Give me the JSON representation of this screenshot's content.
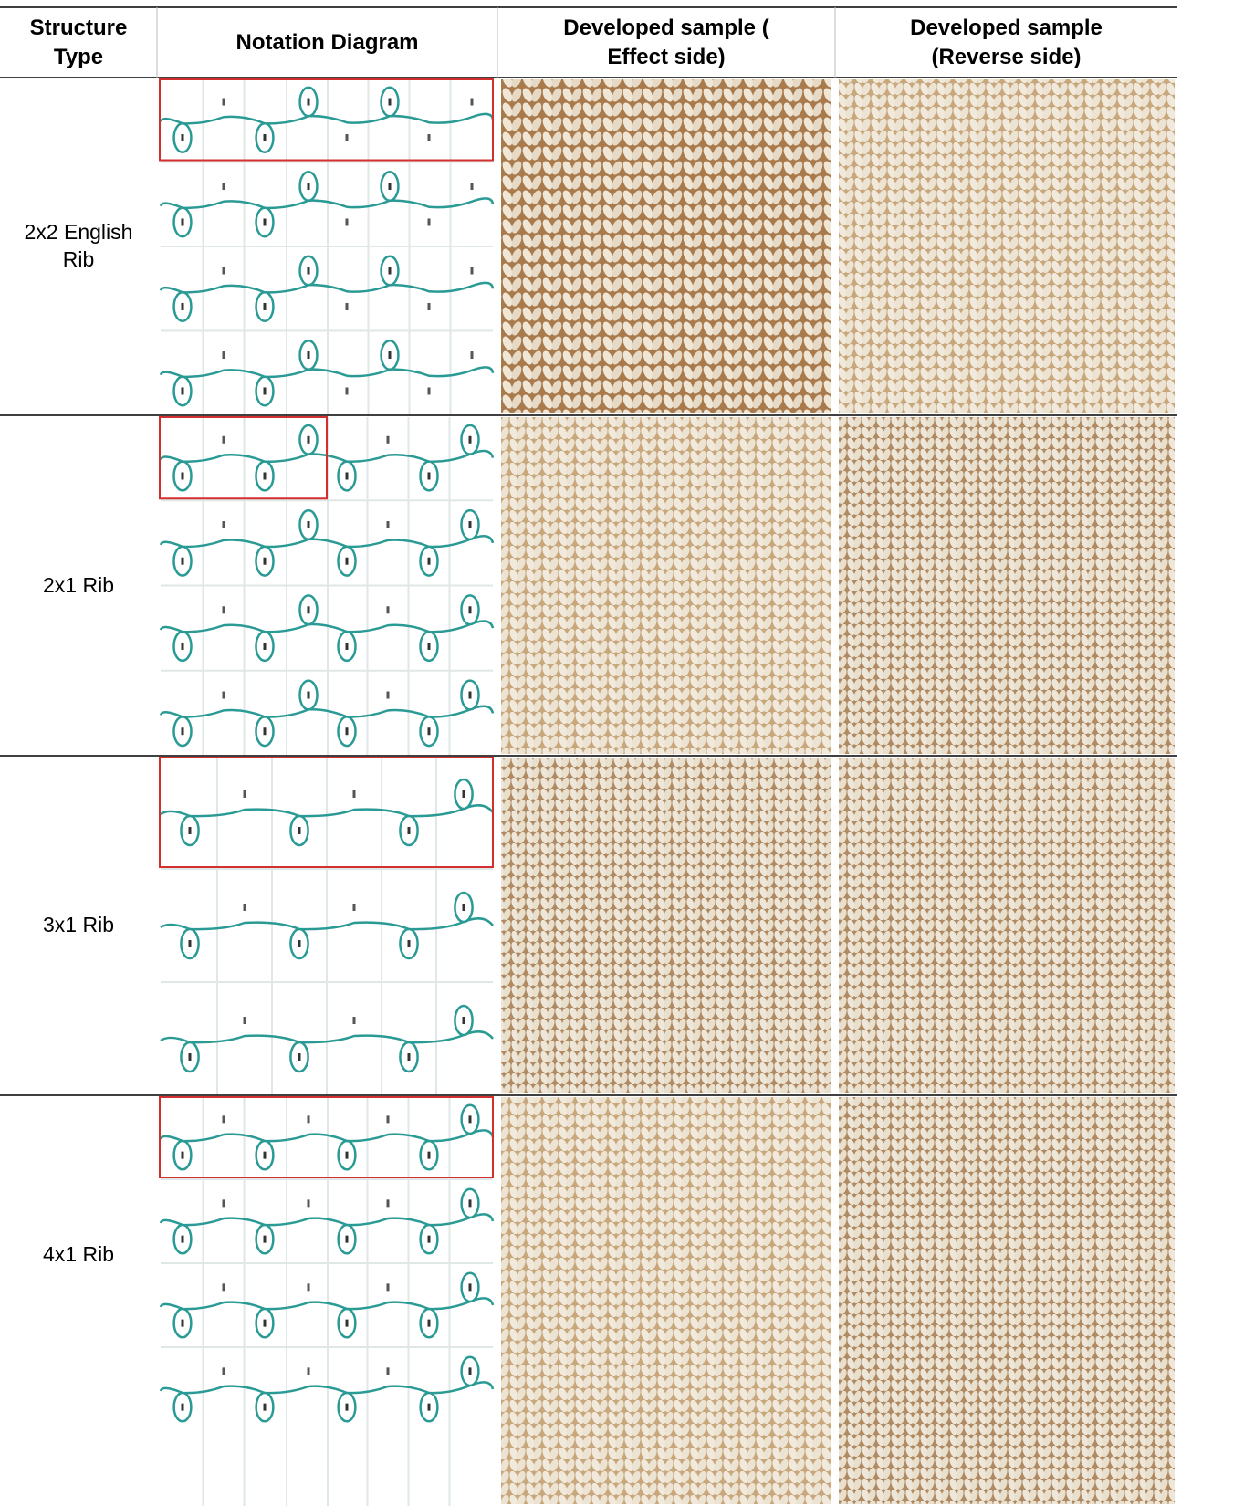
{
  "header": [
    "Structure Type",
    "Notation Diagram",
    "Developed sample ( Effect side)",
    "Developed sample (Reverse side)"
  ],
  "rows": [
    {
      "structure_type": "2x2 English Rib"
    },
    {
      "structure_type": "2x1 Rib"
    },
    {
      "structure_type": "3x1 Rib"
    },
    {
      "structure_type": "4x1 Rib"
    }
  ]
}
